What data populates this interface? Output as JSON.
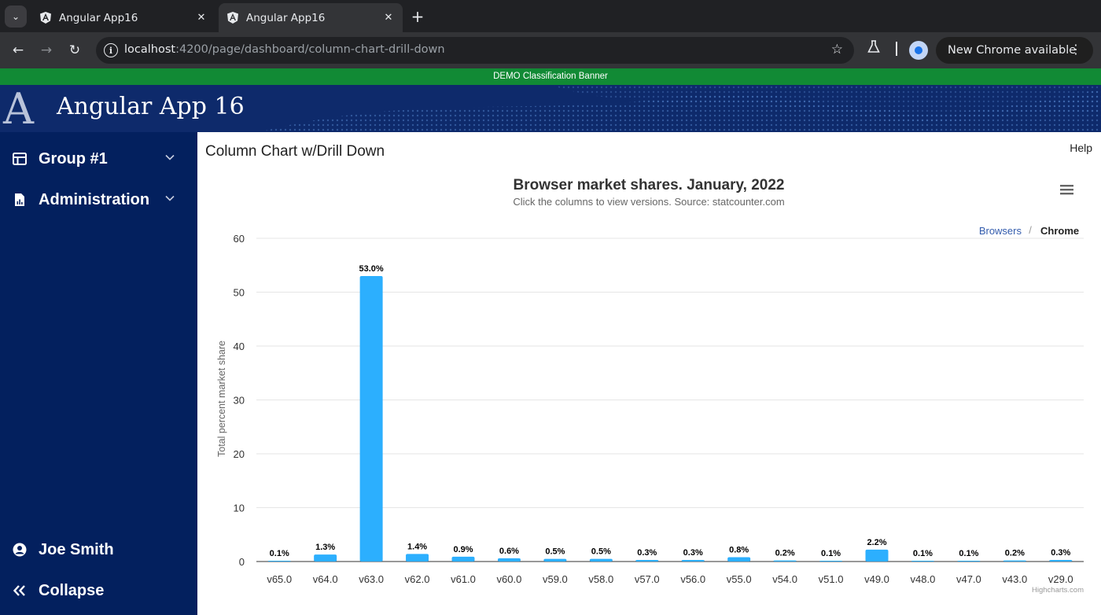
{
  "browser": {
    "tabs": [
      {
        "title": "Angular App16"
      },
      {
        "title": "Angular App16"
      }
    ],
    "url_host": "localhost",
    "url_path": ":4200/page/dashboard/column-chart-drill-down",
    "update_label": "New Chrome available"
  },
  "app": {
    "banner": "DEMO Classification Banner",
    "logo_letter": "A",
    "title": "Angular App 16"
  },
  "sidebar": {
    "items": [
      {
        "label": "Group #1",
        "icon": "dashboard-icon"
      },
      {
        "label": "Administration",
        "icon": "report-icon"
      }
    ],
    "user": {
      "label": "Joe Smith",
      "icon": "account-icon"
    },
    "collapse": {
      "label": "Collapse",
      "icon": "double-chevron-left-icon"
    }
  },
  "main": {
    "title": "Column Chart w/Drill Down",
    "help": "Help"
  },
  "colors": {
    "bar": "#2caffe",
    "sidebar": "#03205e",
    "header": "#0e2a6b",
    "banner": "#118a35"
  },
  "chart_data": {
    "type": "bar",
    "title": "Browser market shares. January, 2022",
    "subtitle": "Click the columns to view versions. Source: statcounter.com",
    "ylabel": "Total percent market share",
    "xlabel": "",
    "ylim": [
      0,
      60
    ],
    "yticks": [
      0,
      10,
      20,
      30,
      40,
      50,
      60
    ],
    "grid": true,
    "legend": false,
    "breadcrumb": [
      "Browsers",
      "Chrome"
    ],
    "breadcrumb_sep": "/",
    "credits": "Highcharts.com",
    "categories": [
      "v65.0",
      "v64.0",
      "v63.0",
      "v62.0",
      "v61.0",
      "v60.0",
      "v59.0",
      "v58.0",
      "v57.0",
      "v56.0",
      "v55.0",
      "v54.0",
      "v51.0",
      "v49.0",
      "v48.0",
      "v47.0",
      "v43.0",
      "v29.0"
    ],
    "values": [
      0.1,
      1.3,
      53.0,
      1.4,
      0.9,
      0.6,
      0.5,
      0.5,
      0.3,
      0.3,
      0.8,
      0.2,
      0.1,
      2.2,
      0.1,
      0.1,
      0.2,
      0.3
    ],
    "data_labels": [
      "0.1%",
      "1.3%",
      "53.0%",
      "1.4%",
      "0.9%",
      "0.6%",
      "0.5%",
      "0.5%",
      "0.3%",
      "0.3%",
      "0.8%",
      "0.2%",
      "0.1%",
      "2.2%",
      "0.1%",
      "0.1%",
      "0.2%",
      "0.3%"
    ]
  }
}
